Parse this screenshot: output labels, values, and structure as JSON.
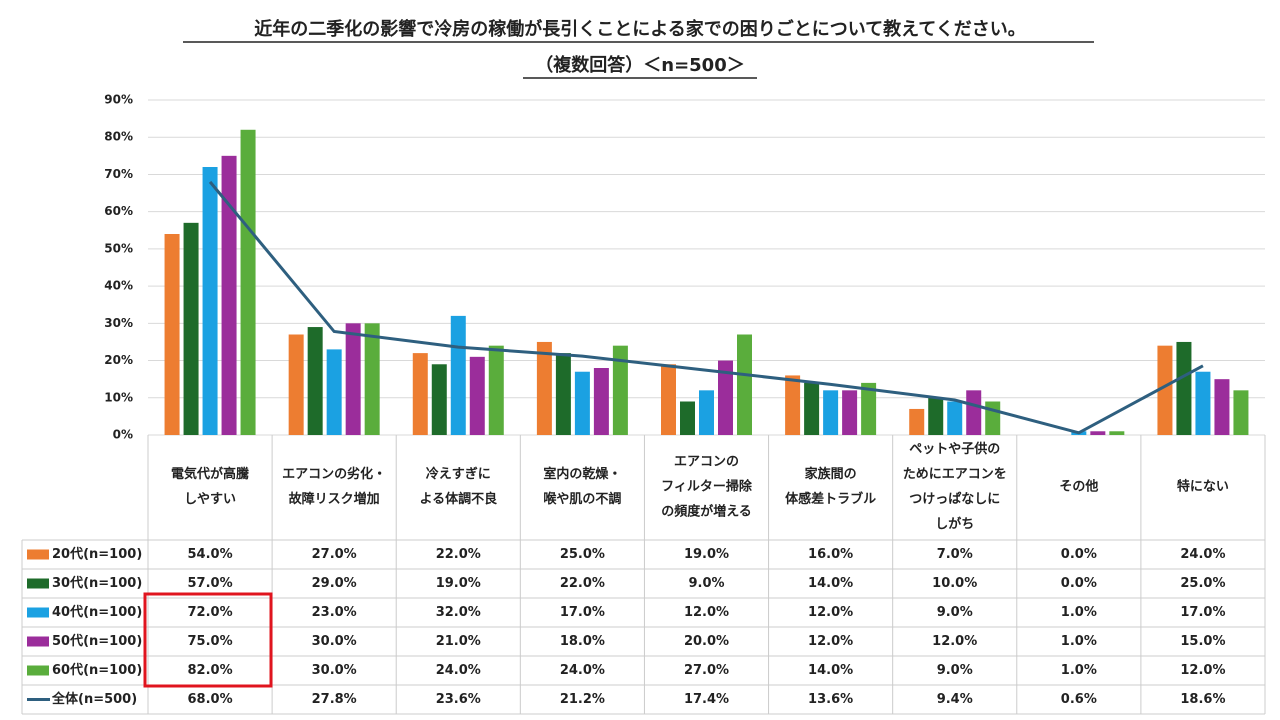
{
  "chart_data": {
    "type": "bar",
    "title": "近年の二季化の影響で冷房の稼働が長引くことによる家での困りごとについて教えてください。",
    "subtitle": "（複数回答）＜n=500＞",
    "categories": [
      [
        "電気代が高騰",
        "しやすい"
      ],
      [
        "エアコンの劣化・",
        "故障リスク増加"
      ],
      [
        "冷えすぎに",
        "よる体調不良"
      ],
      [
        "室内の乾燥・",
        "喉や肌の不調"
      ],
      [
        "エアコンの",
        "フィルター掃除",
        "の頻度が増える"
      ],
      [
        "家族間の",
        "体感差トラブル"
      ],
      [
        "ペットや子供の",
        "ためにエアコンを",
        "つけっぱなしに",
        "しがち"
      ],
      [
        "その他"
      ],
      [
        "特にない"
      ]
    ],
    "ylim": [
      0,
      90
    ],
    "yticks": [
      {
        "value": 0,
        "label": "0%"
      },
      {
        "value": 10,
        "label": "10%"
      },
      {
        "value": 20,
        "label": "20%"
      },
      {
        "value": 30,
        "label": "30%"
      },
      {
        "value": 40,
        "label": "40%"
      },
      {
        "value": 50,
        "label": "50%"
      },
      {
        "value": 60,
        "label": "60%"
      },
      {
        "value": 70,
        "label": "70%"
      },
      {
        "value": 80,
        "label": "80%"
      },
      {
        "value": 90,
        "label": "90%"
      }
    ],
    "grid": true,
    "series": [
      {
        "name": "20代(n=100)",
        "color": "#ed7d31",
        "type": "bar",
        "values": [
          54,
          27,
          22,
          25,
          19,
          16,
          7,
          0,
          24
        ],
        "value_labels": [
          "54.0%",
          "27.0%",
          "22.0%",
          "25.0%",
          "19.0%",
          "16.0%",
          "7.0%",
          "0.0%",
          "24.0%"
        ]
      },
      {
        "name": "30代(n=100)",
        "color": "#1e6b2a",
        "type": "bar",
        "values": [
          57,
          29,
          19,
          22,
          9,
          14,
          10,
          0,
          25
        ],
        "value_labels": [
          "57.0%",
          "29.0%",
          "19.0%",
          "22.0%",
          "9.0%",
          "14.0%",
          "10.0%",
          "0.0%",
          "25.0%"
        ]
      },
      {
        "name": "40代(n=100)",
        "color": "#1ba1e2",
        "type": "bar",
        "values": [
          72,
          23,
          32,
          17,
          12,
          12,
          9,
          1,
          17
        ],
        "value_labels": [
          "72.0%",
          "23.0%",
          "32.0%",
          "17.0%",
          "12.0%",
          "12.0%",
          "9.0%",
          "1.0%",
          "17.0%"
        ]
      },
      {
        "name": "50代(n=100)",
        "color": "#9b2d9b",
        "type": "bar",
        "values": [
          75,
          30,
          21,
          18,
          20,
          12,
          12,
          1,
          15
        ],
        "value_labels": [
          "75.0%",
          "30.0%",
          "21.0%",
          "18.0%",
          "20.0%",
          "12.0%",
          "12.0%",
          "1.0%",
          "15.0%"
        ]
      },
      {
        "name": "60代(n=100)",
        "color": "#5aad3c",
        "type": "bar",
        "values": [
          82,
          30,
          24,
          24,
          27,
          14,
          9,
          1,
          12
        ],
        "value_labels": [
          "82.0%",
          "30.0%",
          "24.0%",
          "24.0%",
          "27.0%",
          "14.0%",
          "9.0%",
          "1.0%",
          "12.0%"
        ]
      },
      {
        "name": "全体(n=500)",
        "color": "#2e5f7f",
        "type": "line",
        "values": [
          68,
          27.8,
          23.6,
          21.2,
          17.4,
          13.6,
          9.4,
          0.6,
          18.6
        ],
        "value_labels": [
          "68.0%",
          "27.8%",
          "23.6%",
          "21.2%",
          "17.4%",
          "13.6%",
          "9.4%",
          "0.6%",
          "18.6%"
        ]
      }
    ]
  }
}
